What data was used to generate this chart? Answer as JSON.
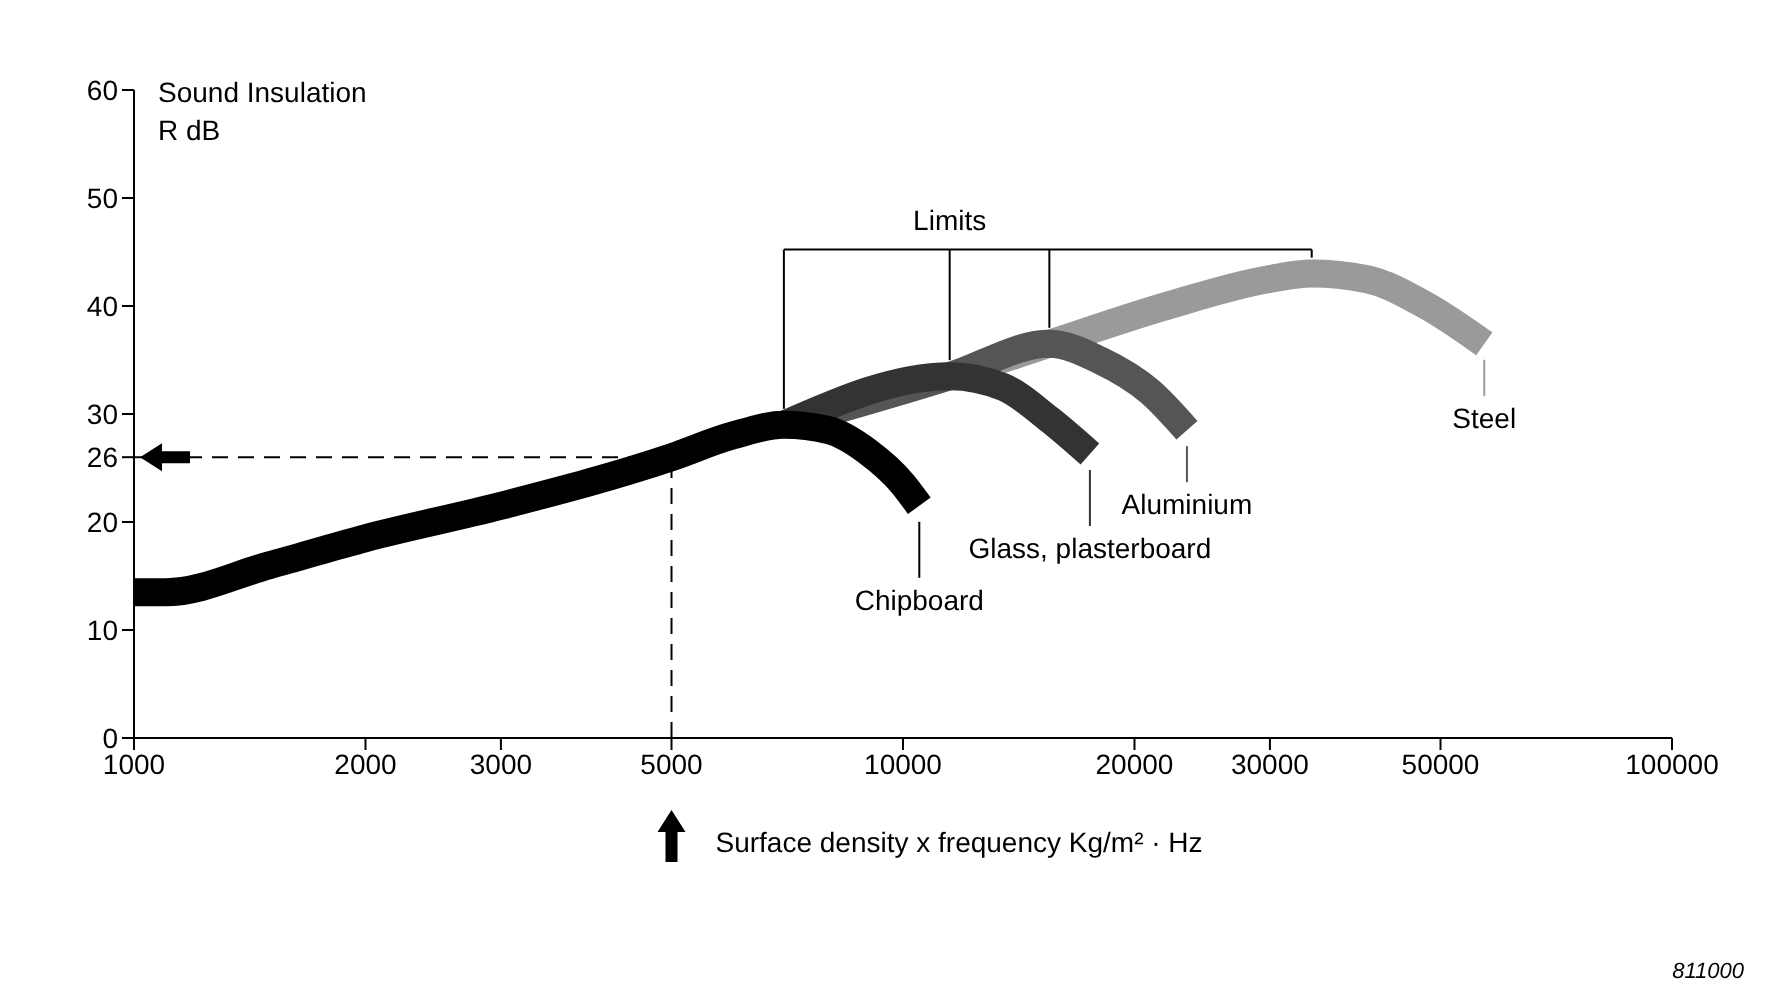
{
  "chart_data": {
    "type": "line",
    "ylabel": "Sound Insulation R dB",
    "xlabel": "Surface density x frequency Kg/m² · Hz",
    "log": "x",
    "xlim": [
      1000,
      100000
    ],
    "xticks": [
      1000,
      2000,
      3000,
      5000,
      10000,
      20000,
      30000,
      50000,
      100000
    ],
    "ylim": [
      0,
      60
    ],
    "yticks": [
      0,
      10,
      20,
      26,
      30,
      40,
      50,
      60
    ],
    "grid": false,
    "legend": "bottom right",
    "series": [
      {
        "name": "Steel",
        "color": "#9a9a9a",
        "x": [
          7000,
          11500,
          15500,
          22000,
          30000,
          34000,
          40000,
          48000,
          57000
        ],
        "values": [
          29,
          33.5,
          36.5,
          40,
          42.5,
          43,
          42.5,
          40,
          36.5
        ]
      },
      {
        "name": "Aluminium",
        "color": "#555555",
        "x": [
          7000,
          11500,
          15500,
          18000,
          21000,
          23400
        ],
        "values": [
          29,
          33.5,
          36.5,
          35,
          32,
          28.5
        ]
      },
      {
        "name": "Glass, plasterboard",
        "color": "#333333",
        "x": [
          7000,
          11500,
          13500,
          15500,
          17500
        ],
        "values": [
          29,
          33.5,
          32.5,
          29.5,
          26.3
        ]
      },
      {
        "name": "Chipboard",
        "color": "#000000",
        "x": [
          1000,
          1100,
          1500,
          2000,
          3000,
          5000,
          6000,
          7000,
          8000,
          9000,
          10000,
          10500
        ],
        "values": [
          13.5,
          13.5,
          16,
          18.5,
          21.5,
          26,
          28,
          29,
          28.5,
          26.5,
          23.5,
          21.5
        ]
      }
    ],
    "ref_lines": [
      {
        "axis": "y",
        "value": 26,
        "line_style": "dashed",
        "color": "#000000"
      },
      {
        "axis": "x",
        "value": 5000,
        "line_style": "dashed",
        "color": "#000000"
      }
    ],
    "annotations": [
      {
        "text": "Limits",
        "x": 11500,
        "y": 33.5
      },
      "811000"
    ]
  }
}
